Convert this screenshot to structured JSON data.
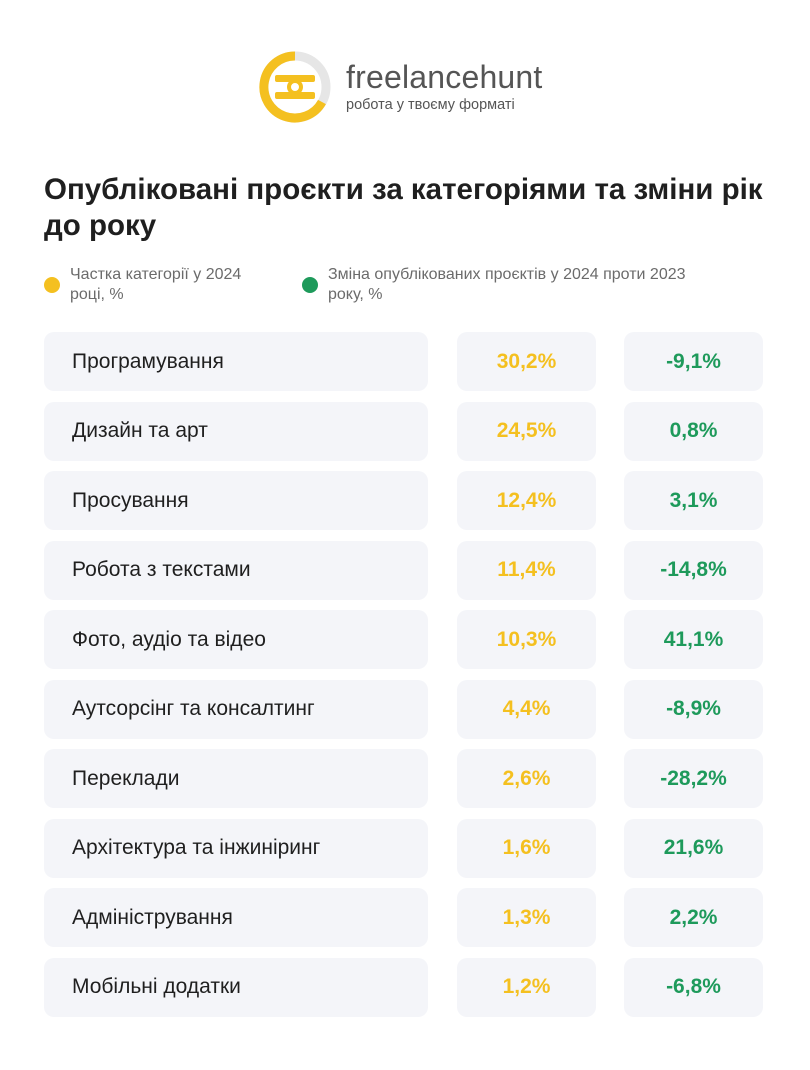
{
  "brand": {
    "name": "freelancehunt",
    "tagline": "робота у твоєму форматі",
    "colors": {
      "accent_yellow": "#f4c020",
      "accent_green": "#1e9a5b",
      "logo_gray": "#e6e6e6"
    }
  },
  "title": "Опубліковані проєкти за категоріями та зміни рік до року",
  "legend": {
    "share": {
      "label": "Частка категорії у 2024 році, %",
      "color": "#f4c020"
    },
    "change": {
      "label": "Зміна опублікованих проєктів у 2024 проти 2023 року, %",
      "color": "#1e9a5b"
    }
  },
  "rows": [
    {
      "category": "Програмування",
      "share": "30,2%",
      "change": "-9,1%"
    },
    {
      "category": "Дизайн та арт",
      "share": "24,5%",
      "change": "0,8%"
    },
    {
      "category": "Просування",
      "share": "12,4%",
      "change": "3,1%"
    },
    {
      "category": "Робота з текстами",
      "share": "11,4%",
      "change": "-14,8%"
    },
    {
      "category": "Фото, аудіо та відео",
      "share": "10,3%",
      "change": "41,1%"
    },
    {
      "category": "Аутсорсінг та консалтинг",
      "share": "4,4%",
      "change": "-8,9%"
    },
    {
      "category": "Переклади",
      "share": "2,6%",
      "change": "-28,2%"
    },
    {
      "category": "Архітектура та інжиніринг",
      "share": "1,6%",
      "change": "21,6%"
    },
    {
      "category": "Адміністрування",
      "share": "1,3%",
      "change": "2,2%"
    },
    {
      "category": "Мобільні додатки",
      "share": "1,2%",
      "change": "-6,8%"
    }
  ]
}
